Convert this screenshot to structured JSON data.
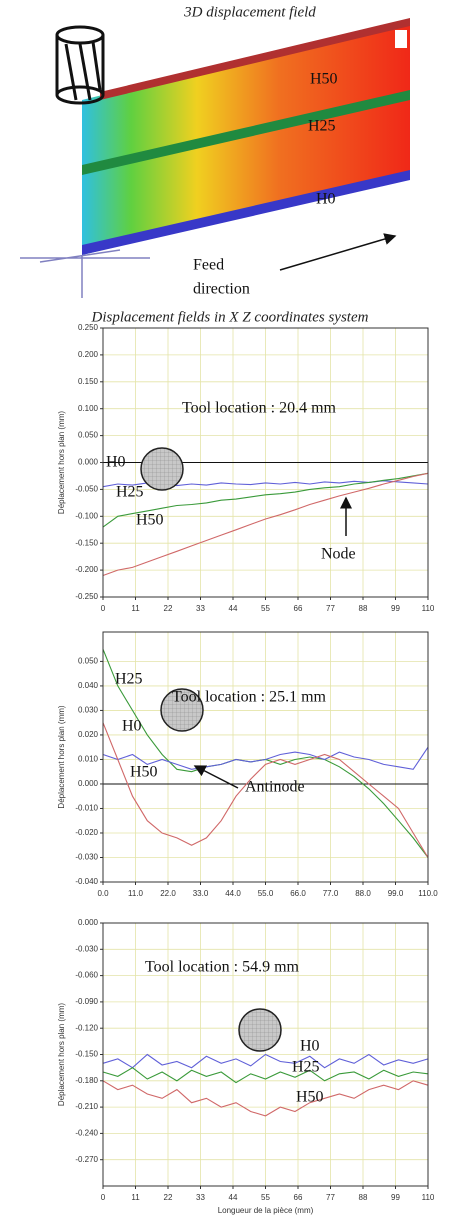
{
  "figure": {
    "title": "3D displacement field",
    "band_labels": [
      "H50",
      "H25",
      "H0"
    ],
    "feed_label": [
      "Feed",
      "direction"
    ],
    "subtitle": "Displacement fields in X Z coordinates system"
  },
  "chart_data": [
    {
      "type": "line",
      "ylabel": "Déplacement hors plan (mm)",
      "annotations": [
        "Tool location : 20.4 mm",
        "Node"
      ],
      "grid": true,
      "xlim": [
        0,
        110
      ],
      "xticks": [
        0,
        11,
        22,
        33,
        44,
        55,
        66,
        77,
        88,
        99,
        110
      ],
      "ylim": [
        -0.25,
        0.25
      ],
      "yticks": [
        {
          "value": 0.25,
          "label": "0.250"
        },
        {
          "value": 0.2,
          "label": "0.200"
        },
        {
          "value": 0.15,
          "label": "0.150"
        },
        {
          "value": 0.1,
          "label": "0.100"
        },
        {
          "value": 0.05,
          "label": "0.050"
        },
        {
          "value": 0,
          "label": "0.000"
        },
        {
          "value": -0.05,
          "label": "-0.050"
        },
        {
          "value": -0.1,
          "label": "-0.100"
        },
        {
          "value": -0.15,
          "label": "-0.150"
        },
        {
          "value": -0.2,
          "label": "-0.200"
        },
        {
          "value": -0.25,
          "label": "-0.250"
        }
      ],
      "x": [
        0,
        5,
        10,
        15,
        20,
        25,
        30,
        35,
        40,
        45,
        50,
        55,
        60,
        65,
        70,
        75,
        80,
        85,
        90,
        95,
        100,
        105,
        110
      ],
      "series": [
        {
          "name": "H0",
          "color": "#6060d8",
          "values": [
            -0.045,
            -0.04,
            -0.042,
            -0.038,
            -0.04,
            -0.043,
            -0.04,
            -0.042,
            -0.038,
            -0.04,
            -0.041,
            -0.038,
            -0.04,
            -0.037,
            -0.04,
            -0.036,
            -0.038,
            -0.035,
            -0.037,
            -0.034,
            -0.036,
            -0.038,
            -0.04
          ]
        },
        {
          "name": "H25",
          "color": "#3a9a3a",
          "values": [
            -0.12,
            -0.1,
            -0.095,
            -0.09,
            -0.085,
            -0.08,
            -0.078,
            -0.075,
            -0.07,
            -0.068,
            -0.064,
            -0.06,
            -0.058,
            -0.055,
            -0.05,
            -0.047,
            -0.045,
            -0.04,
            -0.037,
            -0.033,
            -0.03,
            -0.025,
            -0.02
          ]
        },
        {
          "name": "H50",
          "color": "#d06868",
          "values": [
            -0.21,
            -0.2,
            -0.195,
            -0.185,
            -0.175,
            -0.165,
            -0.155,
            -0.145,
            -0.135,
            -0.125,
            -0.115,
            -0.105,
            -0.097,
            -0.088,
            -0.078,
            -0.07,
            -0.062,
            -0.055,
            -0.048,
            -0.04,
            -0.033,
            -0.026,
            -0.02
          ]
        }
      ]
    },
    {
      "type": "line",
      "ylabel": "Déplacement hors plan (mm)",
      "annotations": [
        "Tool location : 25.1 mm",
        "Antinode"
      ],
      "grid": true,
      "xlim": [
        0,
        110
      ],
      "xticks": [
        {
          "value": 0,
          "label": "0.0"
        },
        {
          "value": 11,
          "label": "11.0"
        },
        {
          "value": 22,
          "label": "22.0"
        },
        {
          "value": 33,
          "label": "33.0"
        },
        {
          "value": 44,
          "label": "44.0"
        },
        {
          "value": 55,
          "label": "55.0"
        },
        {
          "value": 66,
          "label": "66.0"
        },
        {
          "value": 77,
          "label": "77.0"
        },
        {
          "value": 88,
          "label": "88.0"
        },
        {
          "value": 99,
          "label": "99.0"
        },
        {
          "value": 110,
          "label": "110.0"
        }
      ],
      "ylim": [
        -0.04,
        0.062
      ],
      "yticks": [
        {
          "value": 0.05,
          "label": "0.050"
        },
        {
          "value": 0.04,
          "label": "0.040"
        },
        {
          "value": 0.03,
          "label": "0.030"
        },
        {
          "value": 0.02,
          "label": "0.020"
        },
        {
          "value": 0.01,
          "label": "0.010"
        },
        {
          "value": 0,
          "label": "0.000"
        },
        {
          "value": -0.01,
          "label": "-0.010"
        },
        {
          "value": -0.02,
          "label": "-0.020"
        },
        {
          "value": -0.03,
          "label": "-0.030"
        },
        {
          "value": -0.04,
          "label": "-0.040"
        }
      ],
      "x": [
        0,
        5,
        10,
        15,
        20,
        25,
        30,
        35,
        40,
        45,
        50,
        55,
        60,
        65,
        70,
        75,
        80,
        85,
        90,
        95,
        100,
        105,
        110
      ],
      "series": [
        {
          "name": "H25",
          "color": "#3a9a3a",
          "values": [
            0.055,
            0.04,
            0.03,
            0.02,
            0.012,
            0.006,
            0.005,
            0.007,
            0.008,
            0.01,
            0.009,
            0.01,
            0.008,
            0.01,
            0.011,
            0.01,
            0.007,
            0.003,
            -0.002,
            -0.008,
            -0.015,
            -0.022,
            -0.03
          ]
        },
        {
          "name": "H0",
          "color": "#6060d8",
          "values": [
            0.012,
            0.01,
            0.012,
            0.008,
            0.01,
            0.008,
            0.006,
            0.007,
            0.008,
            0.01,
            0.009,
            0.01,
            0.012,
            0.013,
            0.012,
            0.01,
            0.013,
            0.011,
            0.01,
            0.008,
            0.007,
            0.006,
            0.015
          ]
        },
        {
          "name": "H50",
          "color": "#d06868",
          "values": [
            0.025,
            0.01,
            -0.005,
            -0.015,
            -0.02,
            -0.022,
            -0.025,
            -0.022,
            -0.015,
            -0.005,
            0.002,
            0.008,
            0.01,
            0.008,
            0.01,
            0.012,
            0.01,
            0.005,
            0,
            -0.005,
            -0.01,
            -0.02,
            -0.03
          ]
        }
      ]
    },
    {
      "type": "line",
      "ylabel": "Déplacement hors plan (mm)",
      "xlabel": "Longueur de la pièce (mm)",
      "annotations": [
        "Tool location : 54.9 mm"
      ],
      "grid": true,
      "xlim": [
        0,
        110
      ],
      "xticks": [
        0,
        11,
        22,
        33,
        44,
        55,
        66,
        77,
        88,
        99,
        110
      ],
      "ylim": [
        -0.3,
        0
      ],
      "yticks": [
        {
          "value": 0,
          "label": "0.000"
        },
        {
          "value": -0.03,
          "label": "-0.030"
        },
        {
          "value": -0.06,
          "label": "-0.060"
        },
        {
          "value": -0.09,
          "label": "-0.090"
        },
        {
          "value": -0.12,
          "label": "-0.120"
        },
        {
          "value": -0.15,
          "label": "-0.150"
        },
        {
          "value": -0.18,
          "label": "-0.180"
        },
        {
          "value": -0.21,
          "label": "-0.210"
        },
        {
          "value": -0.24,
          "label": "-0.240"
        },
        {
          "value": -0.27,
          "label": "-0.270"
        }
      ],
      "x": [
        0,
        5,
        10,
        15,
        20,
        25,
        30,
        35,
        40,
        45,
        50,
        55,
        60,
        65,
        70,
        75,
        80,
        85,
        90,
        95,
        100,
        105,
        110
      ],
      "series": [
        {
          "name": "H0",
          "color": "#6060d8",
          "values": [
            -0.16,
            -0.155,
            -0.165,
            -0.15,
            -0.162,
            -0.158,
            -0.165,
            -0.152,
            -0.16,
            -0.155,
            -0.163,
            -0.15,
            -0.158,
            -0.16,
            -0.152,
            -0.165,
            -0.155,
            -0.16,
            -0.15,
            -0.162,
            -0.156,
            -0.16,
            -0.155
          ]
        },
        {
          "name": "H25",
          "color": "#3a9a3a",
          "values": [
            -0.17,
            -0.175,
            -0.165,
            -0.178,
            -0.17,
            -0.18,
            -0.168,
            -0.175,
            -0.17,
            -0.182,
            -0.172,
            -0.178,
            -0.17,
            -0.176,
            -0.168,
            -0.18,
            -0.172,
            -0.17,
            -0.178,
            -0.168,
            -0.175,
            -0.17,
            -0.172
          ]
        },
        {
          "name": "H50",
          "color": "#d06868",
          "values": [
            -0.18,
            -0.19,
            -0.185,
            -0.195,
            -0.2,
            -0.19,
            -0.205,
            -0.2,
            -0.21,
            -0.205,
            -0.215,
            -0.22,
            -0.21,
            -0.215,
            -0.205,
            -0.2,
            -0.195,
            -0.2,
            -0.19,
            -0.185,
            -0.19,
            -0.18,
            -0.185
          ]
        }
      ]
    }
  ]
}
